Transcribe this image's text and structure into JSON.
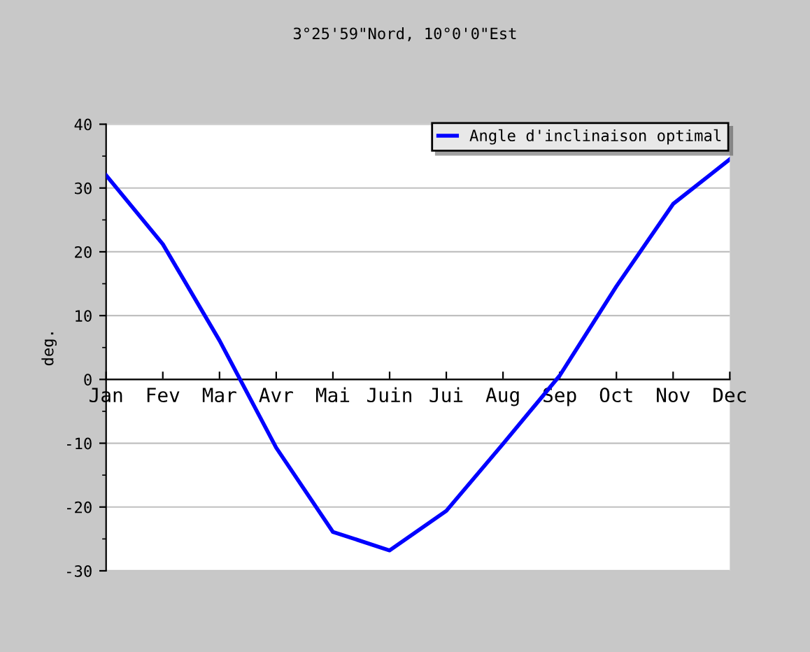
{
  "chart_data": {
    "type": "line",
    "title": "3°25'59\"Nord, 10°0'0\"Est",
    "ylabel": "deg.",
    "categories": [
      "Jan",
      "Fev",
      "Mar",
      "Avr",
      "Mai",
      "Juin",
      "Jui",
      "Aug",
      "Sep",
      "Oct",
      "Nov",
      "Dec"
    ],
    "series": [
      {
        "name": "Angle d'inclinaison optimal",
        "color": "#0000ff",
        "values": [
          32,
          21.2,
          6.1,
          -10.7,
          -23.9,
          -26.8,
          -20.6,
          -10.1,
          0.6,
          14.6,
          27.5,
          34.5
        ]
      }
    ],
    "ylim": [
      -30,
      40
    ],
    "yticks": [
      -30,
      -20,
      -10,
      0,
      10,
      20,
      30,
      40
    ],
    "grid": "y",
    "legend": "top right",
    "marker": "none",
    "line_style": "solid"
  }
}
